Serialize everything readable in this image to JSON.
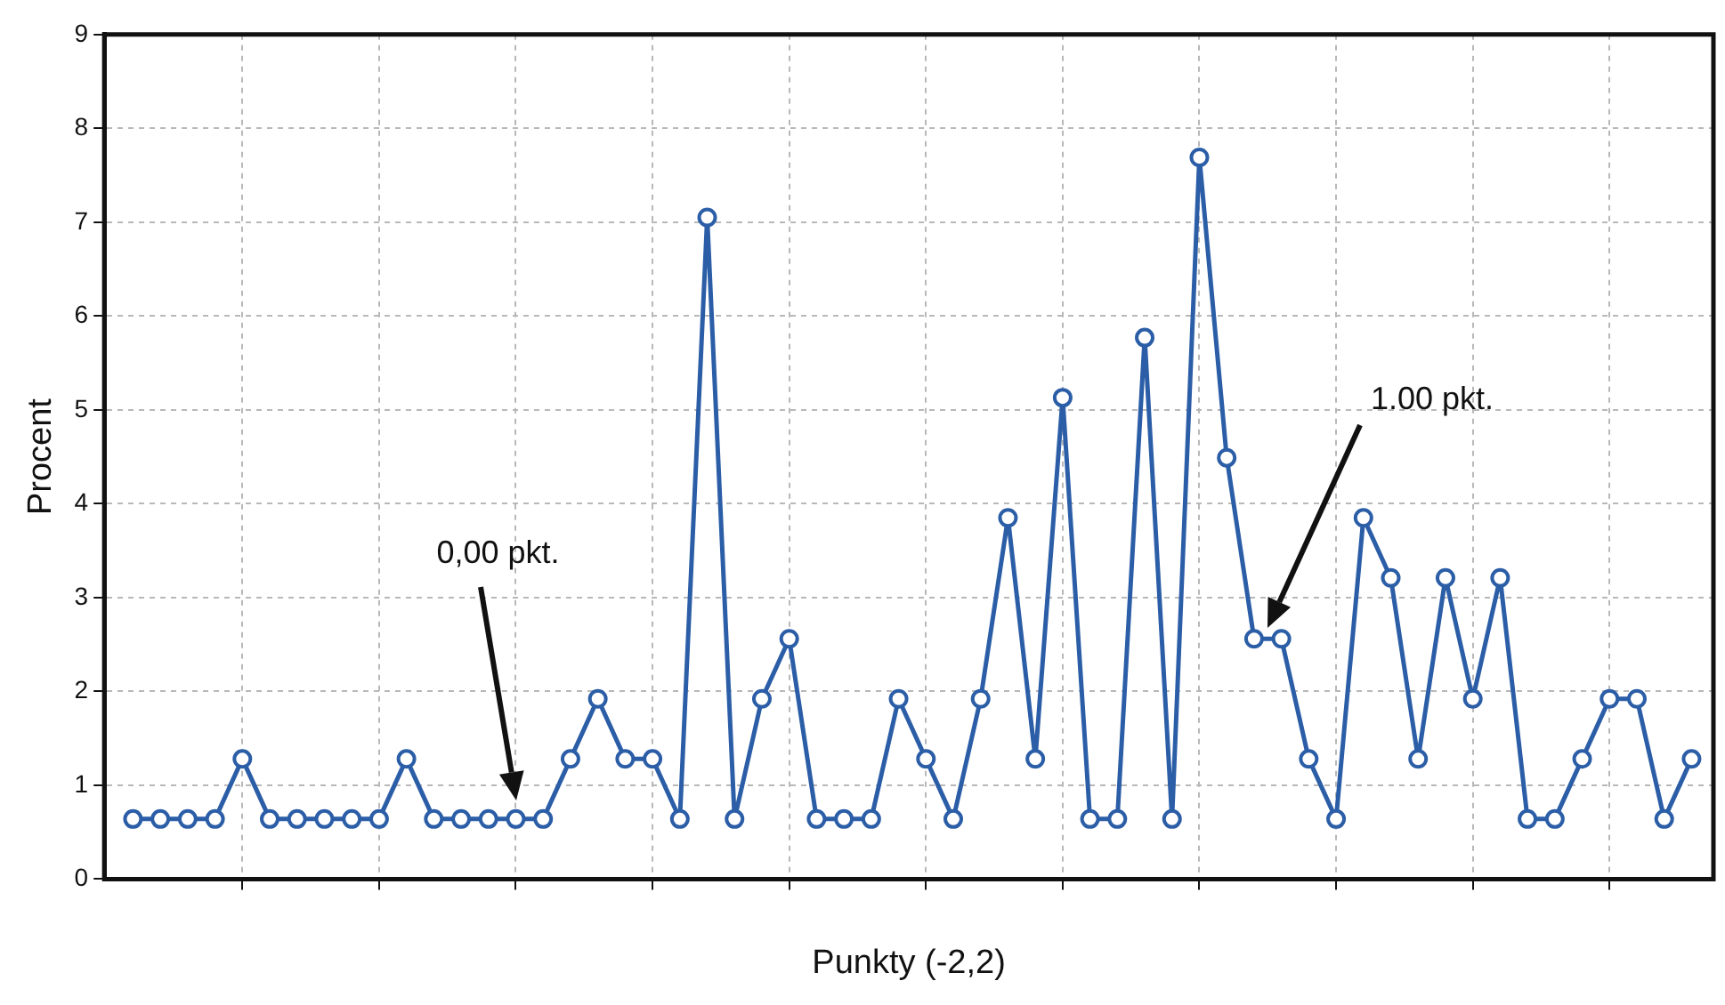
{
  "chart_data": {
    "type": "line",
    "xlabel": "Punkty (-2,2)",
    "ylabel": "Procent",
    "categories": [
      null,
      null,
      null,
      null,
      null,
      null,
      null,
      null,
      null,
      null,
      null,
      null,
      null,
      null,
      null,
      null,
      null,
      null,
      null,
      null,
      null,
      null,
      null,
      null,
      null,
      null,
      null,
      null,
      null,
      null,
      null,
      null,
      null,
      null,
      null,
      null,
      null,
      null,
      null,
      null,
      null,
      null,
      null,
      null,
      null,
      null,
      null,
      null,
      null,
      null,
      null,
      null,
      null,
      null,
      null,
      null,
      null,
      null
    ],
    "series": [
      {
        "color": "#2b5ea7",
        "values": [
          0.64,
          0.64,
          0.64,
          0.64,
          1.28,
          0.64,
          0.64,
          0.64,
          0.64,
          0.64,
          1.28,
          0.64,
          0.64,
          0.64,
          0.64,
          0.64,
          1.28,
          1.92,
          1.28,
          1.28,
          0.64,
          7.05,
          0.64,
          1.92,
          2.56,
          0.64,
          0.64,
          0.64,
          1.92,
          1.28,
          0.64,
          1.92,
          3.85,
          1.28,
          5.13,
          0.64,
          0.64,
          5.77,
          0.64,
          7.69,
          4.49,
          2.56,
          2.56,
          1.28,
          0.64,
          3.85,
          3.21,
          1.28,
          3.21,
          1.92,
          3.21,
          0.64,
          0.64,
          1.28,
          1.92,
          1.92,
          0.64,
          1.28
        ]
      }
    ],
    "ylim": [
      0,
      9
    ],
    "yticks": [
      0,
      1,
      2,
      3,
      4,
      5,
      6,
      7,
      8,
      9
    ],
    "grid": true,
    "marker": "circle",
    "line_style": "solid",
    "tick_labels": "y",
    "legend": false,
    "annotations": [
      "0,00 pkt.",
      "1.00 pkt."
    ]
  }
}
